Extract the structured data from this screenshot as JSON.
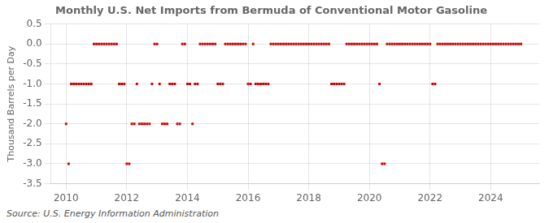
{
  "chart_data": {
    "type": "scatter",
    "title": "Monthly U.S. Net Imports from Bermuda of Conventional Motor Gasoline",
    "y_label": "Thousand Barrels per Day",
    "source": "Source: U.S. Energy Information Administration",
    "color": "#cc0000",
    "marker": "square",
    "grid": true,
    "xlim": [
      2009.5,
      2025.6
    ],
    "xticks": [
      2010,
      2012,
      2014,
      2016,
      2018,
      2020,
      2022,
      2024
    ],
    "ylim": [
      -3.5,
      0.5
    ],
    "yticks": [
      0.5,
      {
        "value": 0,
        "label": "0.0"
      },
      -0.5,
      {
        "value": -1,
        "label": "-1.0"
      },
      -1.5,
      {
        "value": -2,
        "label": "-2.0"
      },
      -2.5,
      {
        "value": -3,
        "label": "-3.0"
      },
      -3.5
    ],
    "x": [
      2010.0,
      2010.083,
      2010.167,
      2010.25,
      2010.333,
      2010.417,
      2010.5,
      2010.583,
      2010.667,
      2010.75,
      2010.833,
      2010.917,
      2011.0,
      2011.083,
      2011.167,
      2011.25,
      2011.333,
      2011.417,
      2011.5,
      2011.583,
      2011.667,
      2011.75,
      2011.833,
      2011.917,
      2012.0,
      2012.083,
      2012.167,
      2012.25,
      2012.333,
      2012.417,
      2012.5,
      2012.583,
      2012.667,
      2012.75,
      2012.833,
      2012.917,
      2013.0,
      2013.083,
      2013.167,
      2013.25,
      2013.333,
      2013.417,
      2013.5,
      2013.583,
      2013.667,
      2013.75,
      2013.833,
      2013.917,
      2014.0,
      2014.083,
      2014.167,
      2014.25,
      2014.333,
      2014.417,
      2014.5,
      2014.583,
      2014.667,
      2014.75,
      2014.833,
      2014.917,
      2015.0,
      2015.083,
      2015.167,
      2015.25,
      2015.333,
      2015.417,
      2015.5,
      2015.583,
      2015.667,
      2015.75,
      2015.833,
      2015.917,
      2016.0,
      2016.083,
      2016.167,
      2016.25,
      2016.333,
      2016.417,
      2016.5,
      2016.583,
      2016.667,
      2016.75,
      2016.833,
      2016.917,
      2017.0,
      2017.083,
      2017.167,
      2017.25,
      2017.333,
      2017.417,
      2017.5,
      2017.583,
      2017.667,
      2017.75,
      2017.833,
      2017.917,
      2018.0,
      2018.083,
      2018.167,
      2018.25,
      2018.333,
      2018.417,
      2018.5,
      2018.583,
      2018.667,
      2018.75,
      2018.833,
      2018.917,
      2019.0,
      2019.083,
      2019.167,
      2019.25,
      2019.333,
      2019.417,
      2019.5,
      2019.583,
      2019.667,
      2019.75,
      2019.833,
      2019.917,
      2020.0,
      2020.083,
      2020.167,
      2020.25,
      2020.333,
      2020.417,
      2020.5,
      2020.583,
      2020.667,
      2020.75,
      2020.833,
      2020.917,
      2021.0,
      2021.083,
      2021.167,
      2021.25,
      2021.333,
      2021.417,
      2021.5,
      2021.583,
      2021.667,
      2021.75,
      2021.833,
      2021.917,
      2022.0,
      2022.083,
      2022.167,
      2022.25,
      2022.333,
      2022.417,
      2022.5,
      2022.583,
      2022.667,
      2022.75,
      2022.833,
      2022.917,
      2023.0,
      2023.083,
      2023.167,
      2023.25,
      2023.333,
      2023.417,
      2023.5,
      2023.583,
      2023.667,
      2023.75,
      2023.833,
      2023.917,
      2024.0,
      2024.083,
      2024.167,
      2024.25,
      2024.333,
      2024.417,
      2024.5,
      2024.583,
      2024.667,
      2024.75,
      2024.833,
      2024.917,
      2025.0
    ],
    "values": [
      -2.0,
      -3.0,
      -1.0,
      -1.0,
      -1.0,
      -1.0,
      -1.0,
      -1.0,
      -1.0,
      -1.0,
      -1.0,
      0.0,
      0.0,
      0.0,
      0.0,
      0.0,
      0.0,
      0.0,
      0.0,
      0.0,
      0.0,
      -1.0,
      -1.0,
      -1.0,
      -3.0,
      -3.0,
      -2.0,
      -2.0,
      -1.0,
      -2.0,
      -2.0,
      -2.0,
      -2.0,
      -2.0,
      -1.0,
      0.0,
      0.0,
      -1.0,
      -2.0,
      -2.0,
      -2.0,
      -1.0,
      -1.0,
      -1.0,
      -2.0,
      -2.0,
      0.0,
      0.0,
      -1.0,
      -1.0,
      -2.0,
      -1.0,
      -1.0,
      0.0,
      0.0,
      0.0,
      0.0,
      0.0,
      0.0,
      0.0,
      -1.0,
      -1.0,
      -1.0,
      0.0,
      0.0,
      0.0,
      0.0,
      0.0,
      0.0,
      0.0,
      0.0,
      0.0,
      -1.0,
      -1.0,
      0.0,
      -1.0,
      -1.0,
      -1.0,
      -1.0,
      -1.0,
      -1.0,
      0.0,
      0.0,
      0.0,
      0.0,
      0.0,
      0.0,
      0.0,
      0.0,
      0.0,
      0.0,
      0.0,
      0.0,
      0.0,
      0.0,
      0.0,
      0.0,
      0.0,
      0.0,
      0.0,
      0.0,
      0.0,
      0.0,
      0.0,
      0.0,
      -1.0,
      -1.0,
      -1.0,
      -1.0,
      -1.0,
      -1.0,
      0.0,
      0.0,
      0.0,
      0.0,
      0.0,
      0.0,
      0.0,
      0.0,
      0.0,
      0.0,
      0.0,
      0.0,
      0.0,
      -1.0,
      -3.0,
      -3.0,
      0.0,
      0.0,
      0.0,
      0.0,
      0.0,
      0.0,
      0.0,
      0.0,
      0.0,
      0.0,
      0.0,
      0.0,
      0.0,
      0.0,
      0.0,
      0.0,
      0.0,
      0.0,
      -1.0,
      -1.0,
      0.0,
      0.0,
      0.0,
      0.0,
      0.0,
      0.0,
      0.0,
      0.0,
      0.0,
      0.0,
      0.0,
      0.0,
      0.0,
      0.0,
      0.0,
      0.0,
      0.0,
      0.0,
      0.0,
      0.0,
      0.0,
      0.0,
      0.0,
      0.0,
      0.0,
      0.0,
      0.0,
      0.0,
      0.0,
      0.0,
      0.0,
      0.0,
      0.0,
      0.0
    ]
  }
}
